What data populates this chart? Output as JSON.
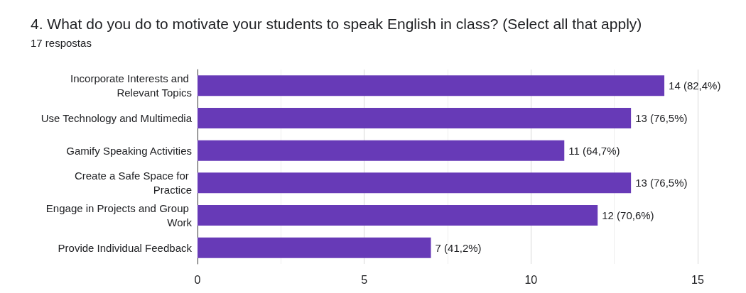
{
  "chart_data": {
    "type": "bar",
    "orientation": "horizontal",
    "title": "4. What do you do to motivate your students to speak English in class? (Select all that apply)",
    "subtitle": "17 respostas",
    "categories": [
      "Incorporate Interests and Relevant Topics",
      "Use Technology and Multimedia",
      "Gamify Speaking Activities",
      "Create a Safe Space for Practice",
      "Engage in Projects and Group Work",
      "Provide Individual Feedback"
    ],
    "values": [
      14,
      13,
      11,
      13,
      12,
      7
    ],
    "value_labels": [
      "14 (82,4%)",
      "13 (76,5%)",
      "11 (64,7%)",
      "13 (76,5%)",
      "12 (70,6%)",
      "7 (41,2%)"
    ],
    "color": "#673ab7",
    "xlim": [
      0,
      15
    ],
    "xticks": [
      0,
      5,
      10,
      15
    ],
    "grid": "x"
  }
}
